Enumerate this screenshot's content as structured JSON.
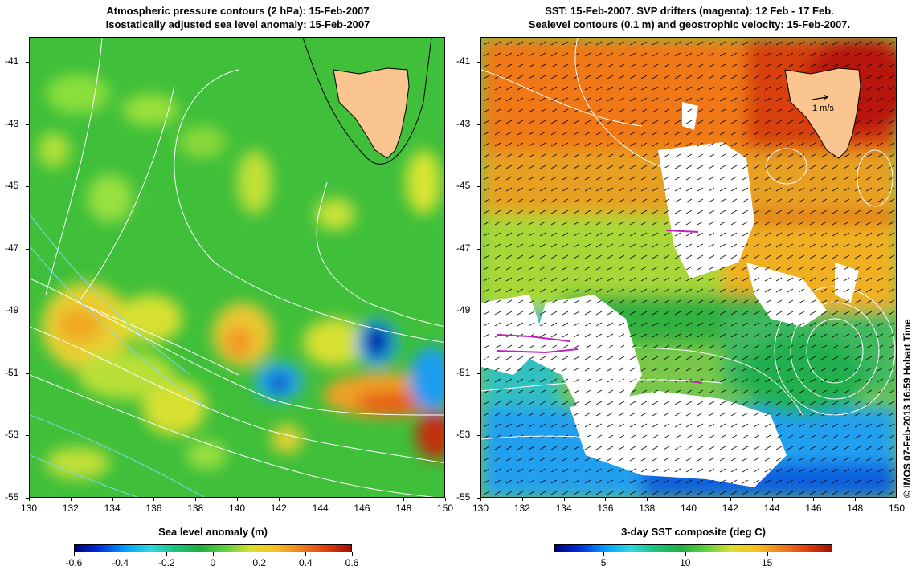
{
  "left_panel": {
    "title_line1": "Atmospheric pressure contours (2 hPa): 15-Feb-2007",
    "title_line2": "Isostatically adjusted sea level anomaly: 15-Feb-2007",
    "colorbar_title": "Sea level anomaly (m)",
    "colorbar_ticks": [
      "-0.6",
      "-0.4",
      "-0.2",
      "0",
      "0.2",
      "0.4",
      "0.6"
    ],
    "colorbar_values": [
      -0.6,
      -0.4,
      -0.2,
      0,
      0.2,
      0.4,
      0.6
    ],
    "colorbar_range": [
      -0.6,
      0.6
    ]
  },
  "right_panel": {
    "title_line1": "SST: 15-Feb-2007. SVP drifters (magenta): 12 Feb - 17 Feb.",
    "title_line2": "Sealevel contours (0.1 m) and geostrophic velocity: 15-Feb-2007.",
    "colorbar_title": "3-day SST composite (deg C)",
    "colorbar_ticks": [
      "5",
      "10",
      "15"
    ],
    "colorbar_values": [
      5,
      10,
      15
    ],
    "colorbar_range": [
      2,
      19
    ],
    "velocity_scale_label": "1 m/s"
  },
  "axes": {
    "x_ticks": [
      "130",
      "132",
      "134",
      "136",
      "138",
      "140",
      "142",
      "144",
      "146",
      "148",
      "150"
    ],
    "x_values": [
      130,
      132,
      134,
      136,
      138,
      140,
      142,
      144,
      146,
      148,
      150
    ],
    "x_range": [
      130,
      150
    ],
    "y_ticks": [
      "-41",
      "-43",
      "-45",
      "-47",
      "-49",
      "-51",
      "-53",
      "-55"
    ],
    "y_values": [
      -41,
      -43,
      -45,
      -47,
      -49,
      -51,
      -53,
      -55
    ],
    "y_range": [
      -40.2,
      -55
    ]
  },
  "credit": "© IMOS 07-Feb-2013 16:59 Hobart Time",
  "colors": {
    "land": "#fbc58f",
    "coast": "#000000",
    "contour": "#ffffff",
    "drifter": "#c020c0"
  }
}
